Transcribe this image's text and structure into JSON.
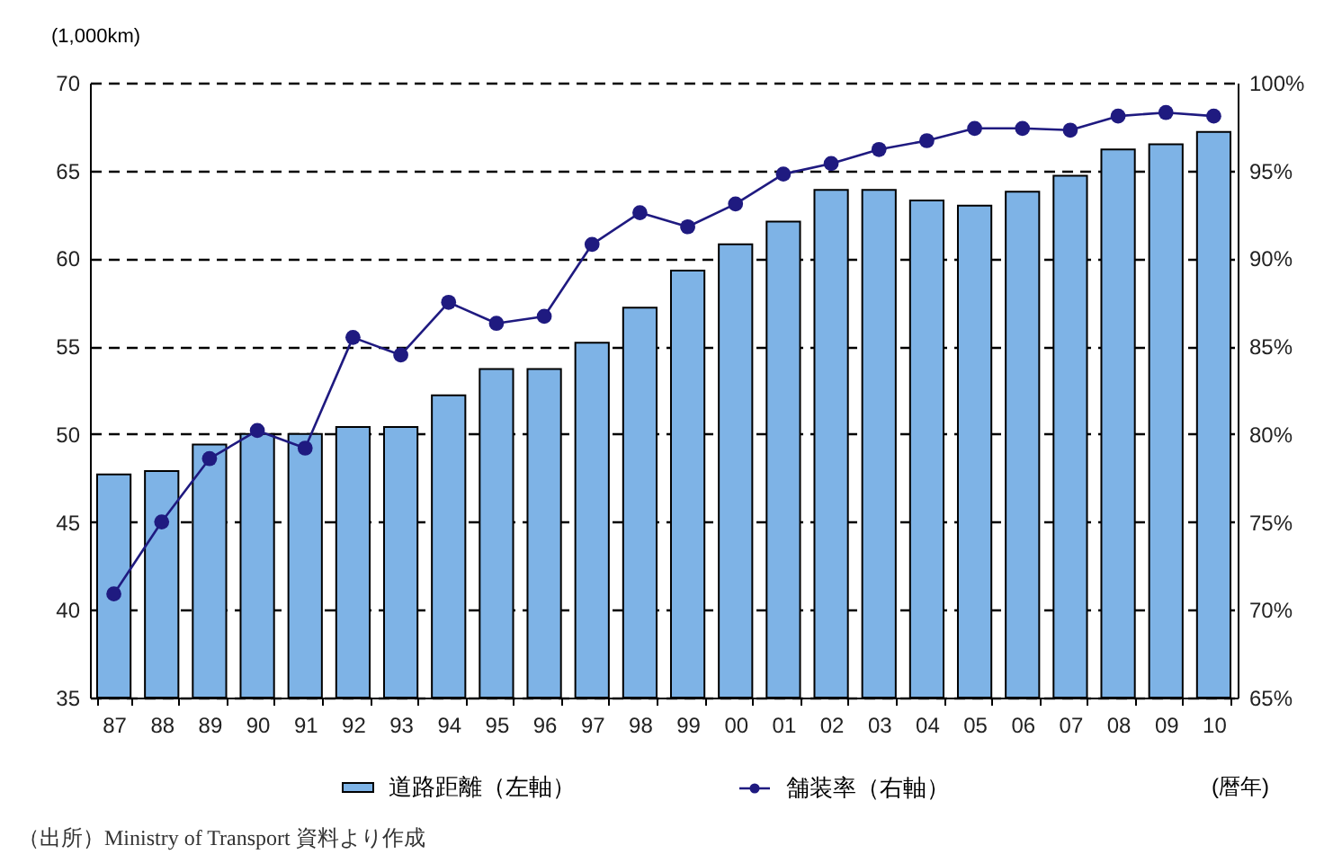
{
  "chart_data": {
    "type": "bar",
    "ylabel": "(1,000km)",
    "xlabel": "(暦年)",
    "annotations": [
      "（出所）Ministry of Transport 資料より作成"
    ],
    "categories": [
      "87",
      "88",
      "89",
      "90",
      "91",
      "92",
      "93",
      "94",
      "95",
      "96",
      "97",
      "98",
      "99",
      "00",
      "01",
      "02",
      "03",
      "04",
      "05",
      "06",
      "07",
      "08",
      "09",
      "10"
    ],
    "series": [
      {
        "name": "道路距離（左軸）",
        "color": "#7eb3e6",
        "values": [
          47.7,
          47.9,
          49.4,
          50.0,
          50.0,
          50.4,
          50.4,
          52.2,
          53.7,
          53.7,
          55.2,
          57.2,
          59.3,
          60.8,
          62.1,
          63.9,
          63.9,
          63.3,
          63.0,
          63.8,
          64.7,
          66.2,
          66.5,
          67.2
        ]
      },
      {
        "name": "舗装率（右軸）",
        "type": "line",
        "axis": "y2",
        "color": "#1f1a80",
        "marker": "circle",
        "values": [
          70.9,
          75.0,
          78.6,
          80.2,
          79.2,
          85.5,
          84.5,
          87.5,
          86.3,
          86.7,
          90.8,
          92.6,
          91.8,
          93.1,
          94.8,
          95.4,
          96.2,
          96.7,
          97.4,
          97.4,
          97.3,
          98.1,
          98.3,
          98.1
        ]
      }
    ],
    "ylim": [
      35,
      70
    ],
    "yticks": [
      35,
      40,
      45,
      50,
      55,
      60,
      65,
      70
    ],
    "y2lim": [
      65,
      100
    ],
    "y2ticks": [
      {
        "value": 65,
        "label": "65%"
      },
      {
        "value": 70,
        "label": "70%"
      },
      {
        "value": 75,
        "label": "75%"
      },
      {
        "value": 80,
        "label": "80%"
      },
      {
        "value": 85,
        "label": "85%"
      },
      {
        "value": 90,
        "label": "90%"
      },
      {
        "value": 95,
        "label": "95%"
      },
      {
        "value": 100,
        "label": "100%"
      }
    ],
    "grid": "y",
    "legend": "bottom"
  }
}
